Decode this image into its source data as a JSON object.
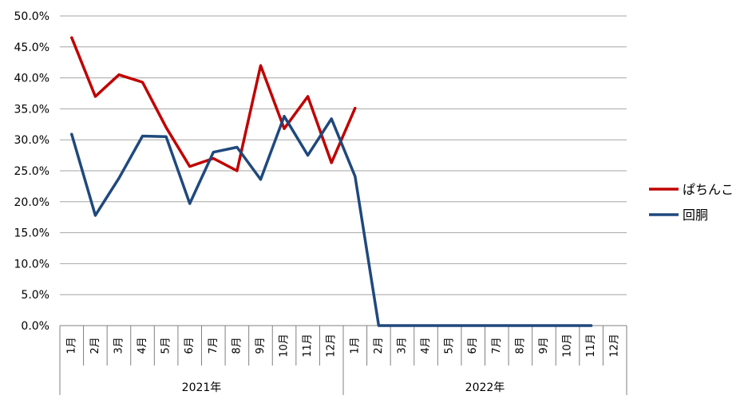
{
  "chart_data": {
    "type": "line",
    "title": "",
    "xlabel": "",
    "ylabel": "",
    "ylim": [
      0,
      0.5
    ],
    "y_ticks": [
      "0.0%",
      "5.0%",
      "10.0%",
      "15.0%",
      "20.0%",
      "25.0%",
      "30.0%",
      "35.0%",
      "40.0%",
      "45.0%",
      "50.0%"
    ],
    "grid": true,
    "legend_position": "right",
    "months": [
      "1月",
      "2月",
      "3月",
      "4月",
      "5月",
      "6月",
      "7月",
      "8月",
      "9月",
      "10月",
      "11月",
      "12月",
      "1月",
      "2月",
      "3月",
      "4月",
      "5月",
      "6月",
      "7月",
      "8月",
      "9月",
      "10月",
      "11月",
      "12月"
    ],
    "years": [
      {
        "label": "2021年",
        "start": 0,
        "end": 11
      },
      {
        "label": "2022年",
        "start": 12,
        "end": 23
      }
    ],
    "series": [
      {
        "name": "ぱちんこ",
        "color": "#c00000",
        "values": [
          0.465,
          0.37,
          0.405,
          0.393,
          0.32,
          0.257,
          0.27,
          0.25,
          0.42,
          0.318,
          0.37,
          0.263,
          0.351,
          null,
          null,
          null,
          null,
          null,
          null,
          null,
          null,
          null,
          null,
          null
        ]
      },
      {
        "name": "回胴",
        "color": "#1f497d",
        "values": [
          0.309,
          0.178,
          0.238,
          0.306,
          0.305,
          0.197,
          0.28,
          0.288,
          0.236,
          0.338,
          0.275,
          0.334,
          0.241,
          0.0,
          0.0,
          0.0,
          0.0,
          0.0,
          0.0,
          0.0,
          0.0,
          0.0,
          0.0,
          null
        ]
      }
    ]
  }
}
